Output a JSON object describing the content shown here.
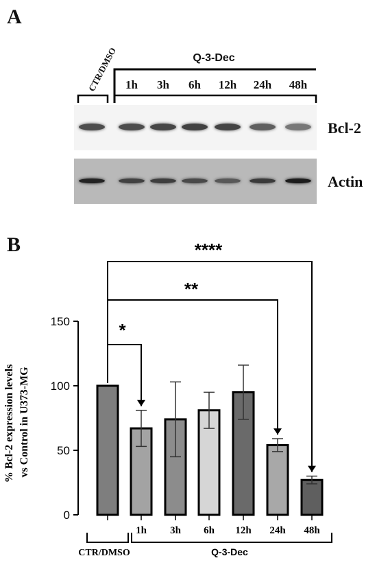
{
  "panelA": {
    "letter": "A",
    "ctr_label": "CTR/DMSO",
    "group_label": "Q-3-Dec",
    "lanes": [
      "1h",
      "3h",
      "6h",
      "12h",
      "24h",
      "48h"
    ],
    "blots": [
      {
        "label": "Bcl-2",
        "intensity": [
          0.62,
          0.62,
          0.66,
          0.7,
          0.68,
          0.5,
          0.33
        ]
      },
      {
        "label": "Actin",
        "intensity": [
          0.9,
          0.7,
          0.72,
          0.65,
          0.55,
          0.75,
          0.95
        ]
      }
    ]
  },
  "panelB": {
    "letter": "B",
    "ctr_group_label": "CTR/DMSO",
    "treat_group_label": "Q-3-Dec"
  },
  "chart_data": {
    "type": "bar",
    "categories": [
      "",
      "1h",
      "3h",
      "6h",
      "12h",
      "24h",
      "48h"
    ],
    "values": [
      100,
      67,
      74,
      81,
      95,
      54,
      27
    ],
    "errors": [
      0,
      14,
      29,
      14,
      21,
      5,
      3
    ],
    "bar_colors": [
      "#7e7e7e",
      "#a3a3a3",
      "#8c8c8c",
      "#d6d6d6",
      "#6a6a6a",
      "#a8a8a8",
      "#5f5f5f"
    ],
    "ylabel_line1": "% Bcl-2 expression levels",
    "ylabel_line2": "vs Control in U373-MG",
    "ylim": [
      0,
      150
    ],
    "yticks": [
      0,
      50,
      100,
      150
    ],
    "significance": [
      {
        "from": 0,
        "to": 1,
        "label": "*"
      },
      {
        "from": 0,
        "to": 5,
        "label": "**"
      },
      {
        "from": 0,
        "to": 6,
        "label": "****"
      }
    ]
  }
}
